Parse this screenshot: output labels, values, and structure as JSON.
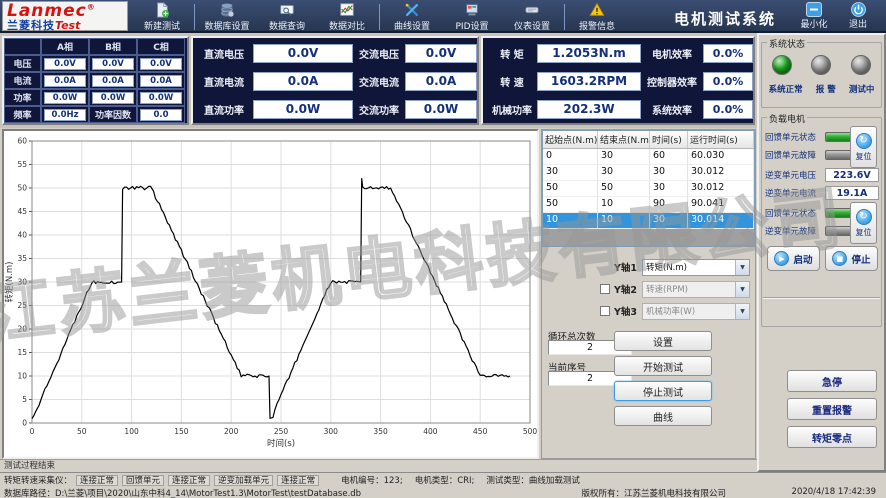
{
  "app": {
    "title": "电机测试系统",
    "logo_main": "Lanmec",
    "logo_reg": "®",
    "logo_sub_cn": "兰菱科技",
    "logo_sub_en": "Test",
    "minimize": "最小化",
    "exit": "退出"
  },
  "toolbar": {
    "items": [
      {
        "label": "新建测试",
        "icon": "new-test-icon"
      },
      {
        "label": "数据库设置",
        "icon": "database-settings-icon"
      },
      {
        "label": "数据查询",
        "icon": "data-query-icon"
      },
      {
        "label": "数据对比",
        "icon": "data-compare-icon"
      },
      {
        "label": "曲线设置",
        "icon": "curve-settings-icon"
      },
      {
        "label": "PID设置",
        "icon": "pid-settings-icon"
      },
      {
        "label": "仪表设置",
        "icon": "instrument-settings-icon"
      },
      {
        "label": "报警信息",
        "icon": "alarm-info-icon"
      }
    ]
  },
  "phase_panel": {
    "headers": [
      "A相",
      "B相",
      "C相"
    ],
    "rows": [
      {
        "label": "电压",
        "values": [
          "0.0V",
          "0.0V",
          "0.0V"
        ]
      },
      {
        "label": "电流",
        "values": [
          "0.0A",
          "0.0A",
          "0.0A"
        ]
      },
      {
        "label": "功率",
        "values": [
          "0.0W",
          "0.0W",
          "0.0W"
        ]
      }
    ],
    "freq_label": "频率",
    "freq_value": "0.0Hz",
    "pf_label": "功率因数",
    "pf_value": "0.0"
  },
  "dcac_panel": {
    "items": [
      {
        "label": "直流电压",
        "value": "0.0V"
      },
      {
        "label": "交流电压",
        "value": "0.0V"
      },
      {
        "label": "直流电流",
        "value": "0.0A"
      },
      {
        "label": "交流电流",
        "value": "0.0A"
      },
      {
        "label": "直流功率",
        "value": "0.0W"
      },
      {
        "label": "交流功率",
        "value": "0.0W"
      }
    ]
  },
  "torque_panel": {
    "items": [
      {
        "label": "转  矩",
        "value": "1.2053N.m"
      },
      {
        "label": "电机效率",
        "value": "0.0%"
      },
      {
        "label": "转  速",
        "value": "1603.2RPM"
      },
      {
        "label": "控制器效率",
        "value": "0.0%"
      },
      {
        "label": "机械功率",
        "value": "202.3W"
      },
      {
        "label": "系统效率",
        "value": "0.0%"
      }
    ]
  },
  "segment_table": {
    "headers": [
      "起始点(N.m)",
      "结束点(N.m)",
      "时间(s)",
      "运行时间(s)"
    ],
    "rows": [
      [
        "0",
        "30",
        "60",
        "60.030"
      ],
      [
        "30",
        "30",
        "30",
        "30.012"
      ],
      [
        "50",
        "50",
        "30",
        "30.012"
      ],
      [
        "50",
        "10",
        "90",
        "90.041"
      ],
      [
        "10",
        "10",
        "30",
        "30.014"
      ]
    ],
    "selected_index": 4
  },
  "axis_selectors": {
    "items": [
      {
        "label": "Y轴1",
        "value": "转矩(N.m)",
        "checkbox": false,
        "enabled": true
      },
      {
        "label": "Y轴2",
        "value": "转速(RPM)",
        "checkbox": true,
        "enabled": false
      },
      {
        "label": "Y轴3",
        "value": "机械功率(W)",
        "checkbox": true,
        "enabled": false
      }
    ]
  },
  "loop": {
    "total_label": "循环总次数",
    "total_value": "2",
    "current_label": "当前序号",
    "current_value": "2"
  },
  "action_buttons": {
    "set": "设置",
    "start_test": "开始测试",
    "stop_test": "停止测试",
    "curve": "曲线"
  },
  "system_status": {
    "title": "系统状态",
    "leds": [
      {
        "label": "系统正常",
        "color": "#1ea51e"
      },
      {
        "label": "报  警",
        "color": "#9b9b9b"
      },
      {
        "label": "测试中",
        "color": "#9b9b9b"
      }
    ]
  },
  "load_motor": {
    "title": "负载电机",
    "rows": [
      {
        "label": "回馈单元状态",
        "color": "#2cb42c"
      },
      {
        "label": "回馈单元故障",
        "color": "#9a9a9a"
      },
      {
        "label": "逆变单元电压",
        "value": "223.6V"
      },
      {
        "label": "逆变单元电流",
        "value": "19.1A"
      },
      {
        "label": "回馈单元状态",
        "color": "#2cb42c"
      },
      {
        "label": "逆变单元故障",
        "color": "#9a9a9a"
      }
    ],
    "reset_label": "复位",
    "start_label": "启动",
    "stop_label": "停止"
  },
  "side_buttons": {
    "estop": "急停",
    "reset_alarm": "重置报警",
    "torque_zero": "转矩零点"
  },
  "status": {
    "process": "测试过程结束",
    "line1": {
      "device_label": "转矩转速采集仪：",
      "device_status": "连接正常",
      "feedback_label": "回馈单元",
      "feedback_status": "连接正常",
      "inverter_label": "逆变加载单元",
      "inverter_status": "连接正常",
      "motor_no": "电机编号：123;",
      "motor_type": "电机类型：CRI;",
      "test_type": "测试类型：曲线加载测试"
    },
    "db_label": "数据库路径：",
    "db_path": "D:\\兰菱\\项目\\2020\\山东中科4_14\\MotorTest1.3\\MotorTest\\testDatabase.db",
    "copyright": "版权所有：江苏兰菱机电科技有限公司",
    "datetime": "2020/4/18 17:42:39"
  },
  "watermark": "江苏兰菱机电科技有限公司",
  "icons": {
    "reset": "↻",
    "start": "▶",
    "stop": "■",
    "dropdown_arrow": "▼"
  },
  "chart_data": {
    "type": "line",
    "title": "",
    "xlabel": "时间(s)",
    "ylabel": "转矩(N.m)",
    "xlim": [
      0,
      500
    ],
    "ylim": [
      0,
      60
    ],
    "xtick": 50,
    "ytick": 5,
    "grid": true,
    "legend_position": "none",
    "line_color": "#000000",
    "noise_amplitude": 0.38,
    "series": [
      {
        "name": "转矩(N.m)",
        "points": [
          [
            0,
            1.3
          ],
          [
            5,
            3
          ],
          [
            60,
            30
          ],
          [
            90,
            30
          ],
          [
            91,
            50
          ],
          [
            120,
            50
          ],
          [
            122,
            49
          ],
          [
            210,
            10
          ],
          [
            238,
            10
          ],
          [
            239,
            1
          ],
          [
            242,
            1.2
          ],
          [
            244,
            3
          ],
          [
            300,
            30
          ],
          [
            330,
            30
          ],
          [
            331,
            52
          ],
          [
            332,
            50
          ],
          [
            360,
            50
          ],
          [
            362,
            49
          ],
          [
            450,
            10
          ],
          [
            480,
            10
          ]
        ]
      }
    ]
  }
}
